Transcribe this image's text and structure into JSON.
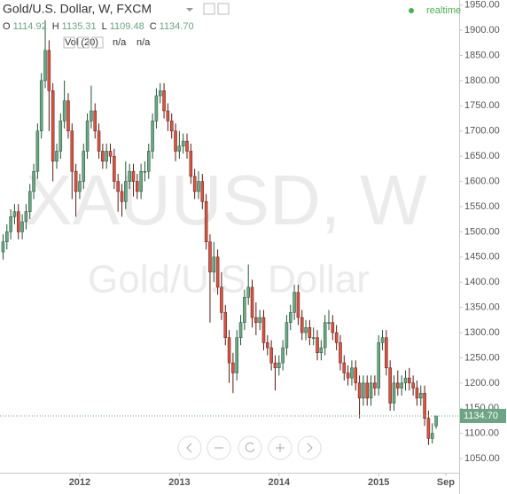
{
  "chart_data": {
    "type": "candlestick",
    "title": "Gold/U.S. Dollar, W, FXCM",
    "ohlc": [
      {
        "label": "O",
        "value": "1114.92"
      },
      {
        "label": "H",
        "value": "1135.31"
      },
      {
        "label": "L",
        "value": "1109.48"
      },
      {
        "label": "C",
        "value": "1134.70"
      }
    ],
    "volume": {
      "label": "Vol (20)",
      "values": [
        "n/a",
        "n/a"
      ]
    },
    "status": "realtime",
    "watermark": "XAUUSD, W",
    "description": "Gold/U.S. Dollar",
    "up_color": "#6ba583",
    "down_color": "#d75442",
    "grid": false,
    "last_price": {
      "value": 1134.7,
      "label": "1134.70"
    },
    "xlim": [
      -0.8,
      119
    ],
    "xticks": [
      {
        "value": 20,
        "label": "2012"
      },
      {
        "value": 46,
        "label": "2013"
      },
      {
        "value": 72,
        "label": "2014"
      },
      {
        "value": 98,
        "label": "2015"
      },
      {
        "value": 115.5,
        "label": "Sep"
      }
    ],
    "ylim": [
      1022,
      1960
    ],
    "yticks": [
      {
        "value": 1050,
        "label": "1050.00"
      },
      {
        "value": 1100,
        "label": "1100.00"
      },
      {
        "value": 1150,
        "label": "1150.00"
      },
      {
        "value": 1200,
        "label": "1200.00"
      },
      {
        "value": 1250,
        "label": "1250.00"
      },
      {
        "value": 1300,
        "label": "1300.00"
      },
      {
        "value": 1350,
        "label": "1350.00"
      },
      {
        "value": 1400,
        "label": "1400.00"
      },
      {
        "value": 1450,
        "label": "1450.00"
      },
      {
        "value": 1500,
        "label": "1500.00"
      },
      {
        "value": 1550,
        "label": "1550.00"
      },
      {
        "value": 1600,
        "label": "1600.00"
      },
      {
        "value": 1650,
        "label": "1650.00"
      },
      {
        "value": 1700,
        "label": "1700.00"
      },
      {
        "value": 1750,
        "label": "1750.00"
      },
      {
        "value": 1800,
        "label": "1800.00"
      },
      {
        "value": 1850,
        "label": "1850.00"
      },
      {
        "value": 1900,
        "label": "1900.00"
      },
      {
        "value": 1950,
        "label": "1950.00"
      }
    ],
    "open": [
      1460,
      1480,
      1500,
      1530,
      1540,
      1500,
      1520,
      1540,
      1580,
      1620,
      1700,
      1800,
      1860,
      1780,
      1640,
      1660,
      1720,
      1760,
      1700,
      1620,
      1580,
      1600,
      1660,
      1720,
      1740,
      1700,
      1660,
      1640,
      1660,
      1650,
      1600,
      1580,
      1560,
      1600,
      1620,
      1600,
      1580,
      1620,
      1620,
      1660,
      1720,
      1770,
      1780,
      1740,
      1720,
      1700,
      1660,
      1670,
      1680,
      1660,
      1610,
      1580,
      1600,
      1560,
      1480,
      1420,
      1450,
      1390,
      1340,
      1290,
      1240,
      1220,
      1290,
      1320,
      1370,
      1390,
      1330,
      1320,
      1330,
      1280,
      1270,
      1240,
      1230,
      1240,
      1270,
      1320,
      1340,
      1380,
      1330,
      1300,
      1310,
      1290,
      1290,
      1260,
      1270,
      1320,
      1320,
      1300,
      1280,
      1240,
      1220,
      1210,
      1230,
      1200,
      1170,
      1200,
      1170,
      1200,
      1190,
      1280,
      1290,
      1230,
      1160,
      1200,
      1190,
      1200,
      1210,
      1200,
      1190,
      1170,
      1180,
      1130,
      1090,
      1114.92
    ],
    "high": [
      1495,
      1515,
      1545,
      1555,
      1555,
      1535,
      1555,
      1595,
      1635,
      1715,
      1815,
      1920,
      1880,
      1795,
      1675,
      1735,
      1800,
      1775,
      1715,
      1635,
      1615,
      1675,
      1735,
      1790,
      1755,
      1715,
      1675,
      1675,
      1675,
      1665,
      1615,
      1595,
      1640,
      1635,
      1635,
      1615,
      1635,
      1640,
      1675,
      1735,
      1785,
      1795,
      1795,
      1755,
      1735,
      1715,
      1700,
      1695,
      1695,
      1675,
      1625,
      1620,
      1615,
      1575,
      1495,
      1480,
      1465,
      1420,
      1355,
      1305,
      1260,
      1305,
      1335,
      1385,
      1435,
      1405,
      1360,
      1345,
      1345,
      1295,
      1285,
      1255,
      1255,
      1285,
      1335,
      1355,
      1395,
      1395,
      1345,
      1325,
      1325,
      1310,
      1305,
      1285,
      1335,
      1345,
      1335,
      1315,
      1295,
      1255,
      1235,
      1245,
      1245,
      1215,
      1215,
      1215,
      1215,
      1215,
      1295,
      1305,
      1305,
      1245,
      1215,
      1225,
      1215,
      1225,
      1230,
      1215,
      1205,
      1195,
      1195,
      1145,
      1120,
      1135.31
    ],
    "low": [
      1445,
      1465,
      1485,
      1515,
      1485,
      1485,
      1505,
      1525,
      1565,
      1605,
      1685,
      1785,
      1700,
      1600,
      1625,
      1645,
      1705,
      1685,
      1565,
      1530,
      1565,
      1585,
      1645,
      1705,
      1685,
      1645,
      1625,
      1625,
      1635,
      1585,
      1540,
      1530,
      1545,
      1585,
      1570,
      1565,
      1565,
      1600,
      1605,
      1645,
      1705,
      1755,
      1725,
      1700,
      1685,
      1640,
      1645,
      1655,
      1645,
      1595,
      1565,
      1565,
      1545,
      1465,
      1320,
      1400,
      1375,
      1325,
      1275,
      1200,
      1180,
      1205,
      1275,
      1305,
      1355,
      1310,
      1295,
      1305,
      1265,
      1255,
      1225,
      1185,
      1215,
      1225,
      1255,
      1305,
      1325,
      1315,
      1285,
      1285,
      1275,
      1275,
      1245,
      1245,
      1255,
      1305,
      1285,
      1265,
      1225,
      1205,
      1195,
      1195,
      1185,
      1130,
      1155,
      1155,
      1155,
      1175,
      1175,
      1265,
      1215,
      1145,
      1145,
      1175,
      1175,
      1185,
      1185,
      1175,
      1155,
      1155,
      1115,
      1077,
      1080,
      1109.48
    ],
    "close": [
      1480,
      1500,
      1530,
      1540,
      1500,
      1520,
      1540,
      1580,
      1620,
      1700,
      1800,
      1860,
      1780,
      1640,
      1660,
      1720,
      1760,
      1700,
      1620,
      1580,
      1600,
      1660,
      1720,
      1740,
      1700,
      1660,
      1640,
      1660,
      1650,
      1600,
      1580,
      1560,
      1600,
      1620,
      1600,
      1580,
      1620,
      1620,
      1660,
      1720,
      1770,
      1780,
      1740,
      1720,
      1700,
      1660,
      1670,
      1680,
      1660,
      1610,
      1580,
      1600,
      1560,
      1480,
      1420,
      1450,
      1390,
      1340,
      1290,
      1240,
      1220,
      1290,
      1320,
      1370,
      1390,
      1330,
      1320,
      1330,
      1280,
      1270,
      1240,
      1230,
      1240,
      1270,
      1320,
      1340,
      1380,
      1330,
      1300,
      1310,
      1290,
      1290,
      1260,
      1270,
      1320,
      1320,
      1300,
      1280,
      1240,
      1220,
      1210,
      1230,
      1200,
      1170,
      1200,
      1170,
      1200,
      1190,
      1280,
      1290,
      1230,
      1160,
      1200,
      1190,
      1200,
      1210,
      1200,
      1190,
      1170,
      1180,
      1130,
      1090,
      1100,
      1134.7
    ]
  }
}
